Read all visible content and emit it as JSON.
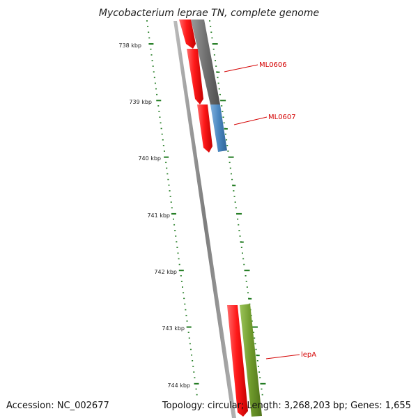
{
  "title": "Mycobacterium leprae TN, complete genome",
  "footer": {
    "accession": "Accession: NC_002677",
    "summary": "Topology: circular; Length: 3,268,203 bp; Genes: 1,655"
  },
  "colors": {
    "tick": "#1f7a1f",
    "backbone": "#8a8a8a",
    "label": "#d40000",
    "forward_red": "#ff1a1a",
    "grey_gene": "#6e6e6e",
    "blue_gene": "#4a86bf",
    "green_gene": "#6f9a2c"
  },
  "ticks": [
    {
      "label": "738 kbp"
    },
    {
      "label": "739 kbp"
    },
    {
      "label": "740 kbp"
    },
    {
      "label": "741 kbp"
    },
    {
      "label": "742 kbp"
    },
    {
      "label": "743 kbp"
    },
    {
      "label": "744 kbp"
    }
  ],
  "gene_labels": [
    {
      "text": "ML0606"
    },
    {
      "text": "ML0607"
    },
    {
      "text": "lepA"
    }
  ]
}
